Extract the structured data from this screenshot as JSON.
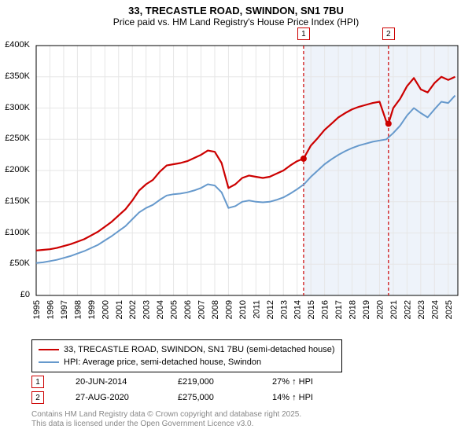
{
  "title": {
    "line1": "33, TRECASTLE ROAD, SWINDON, SN1 7BU",
    "line2": "Price paid vs. HM Land Registry's House Price Index (HPI)"
  },
  "chart": {
    "type": "line",
    "background_color": "#ffffff",
    "plot_border_color": "#000000",
    "grid_color": "#e6e6e6",
    "shaded_band": {
      "x_from": 2014.47,
      "x_to": 2025.7,
      "fill": "#eef3fa"
    },
    "x": {
      "min": 1995,
      "max": 2025.7,
      "ticks": [
        1995,
        1996,
        1997,
        1998,
        1999,
        2000,
        2001,
        2002,
        2003,
        2004,
        2005,
        2006,
        2007,
        2008,
        2009,
        2010,
        2011,
        2012,
        2013,
        2014,
        2015,
        2016,
        2017,
        2018,
        2019,
        2020,
        2021,
        2022,
        2023,
        2024,
        2025
      ],
      "tick_fontsize": 11,
      "tick_rotation": -90
    },
    "y": {
      "min": 0,
      "max": 400000,
      "ticks": [
        0,
        50000,
        100000,
        150000,
        200000,
        250000,
        300000,
        350000,
        400000
      ],
      "tick_labels": [
        "£0",
        "£50K",
        "£100K",
        "£150K",
        "£200K",
        "£250K",
        "£300K",
        "£350K",
        "£400K"
      ],
      "tick_fontsize": 11
    },
    "series": [
      {
        "name": "33, TRECASTLE ROAD, SWINDON, SN1 7BU (semi-detached house)",
        "color": "#cc0000",
        "line_width": 2.2,
        "x": [
          1995,
          1995.5,
          1996,
          1996.5,
          1997,
          1997.5,
          1998,
          1998.5,
          1999,
          1999.5,
          2000,
          2000.5,
          2001,
          2001.5,
          2002,
          2002.5,
          2003,
          2003.5,
          2004,
          2004.5,
          2005,
          2005.5,
          2006,
          2006.5,
          2007,
          2007.5,
          2008,
          2008.5,
          2009,
          2009.5,
          2010,
          2010.5,
          2011,
          2011.5,
          2012,
          2012.5,
          2013,
          2013.5,
          2014,
          2014.47,
          2015,
          2015.5,
          2016,
          2016.5,
          2017,
          2017.5,
          2018,
          2018.5,
          2019,
          2019.5,
          2020,
          2020.5,
          2020.65,
          2021,
          2021.5,
          2022,
          2022.5,
          2023,
          2023.5,
          2024,
          2024.5,
          2025,
          2025.5
        ],
        "y": [
          72000,
          73000,
          74000,
          76000,
          79000,
          82000,
          86000,
          90000,
          96000,
          102000,
          110000,
          118000,
          128000,
          138000,
          152000,
          168000,
          178000,
          185000,
          198000,
          208000,
          210000,
          212000,
          215000,
          220000,
          225000,
          232000,
          230000,
          212000,
          172000,
          178000,
          188000,
          192000,
          190000,
          188000,
          190000,
          195000,
          200000,
          208000,
          215000,
          219000,
          240000,
          252000,
          265000,
          275000,
          285000,
          292000,
          298000,
          302000,
          305000,
          308000,
          310000,
          278000,
          275000,
          300000,
          315000,
          335000,
          348000,
          330000,
          325000,
          340000,
          350000,
          345000,
          350000
        ]
      },
      {
        "name": "HPI: Average price, semi-detached house, Swindon",
        "color": "#6699cc",
        "line_width": 2.0,
        "x": [
          1995,
          1995.5,
          1996,
          1996.5,
          1997,
          1997.5,
          1998,
          1998.5,
          1999,
          1999.5,
          2000,
          2000.5,
          2001,
          2001.5,
          2002,
          2002.5,
          2003,
          2003.5,
          2004,
          2004.5,
          2005,
          2005.5,
          2006,
          2006.5,
          2007,
          2007.5,
          2008,
          2008.5,
          2009,
          2009.5,
          2010,
          2010.5,
          2011,
          2011.5,
          2012,
          2012.5,
          2013,
          2013.5,
          2014,
          2014.5,
          2015,
          2015.5,
          2016,
          2016.5,
          2017,
          2017.5,
          2018,
          2018.5,
          2019,
          2019.5,
          2020,
          2020.5,
          2021,
          2021.5,
          2022,
          2022.5,
          2023,
          2023.5,
          2024,
          2024.5,
          2025,
          2025.5
        ],
        "y": [
          52000,
          53000,
          55000,
          57000,
          60000,
          63000,
          67000,
          71000,
          76000,
          81000,
          88000,
          95000,
          103000,
          111000,
          122000,
          133000,
          140000,
          145000,
          153000,
          160000,
          162000,
          163000,
          165000,
          168000,
          172000,
          178000,
          176000,
          165000,
          140000,
          143000,
          150000,
          152000,
          150000,
          149000,
          150000,
          153000,
          157000,
          163000,
          170000,
          178000,
          190000,
          200000,
          210000,
          218000,
          225000,
          231000,
          236000,
          240000,
          243000,
          246000,
          248000,
          250000,
          260000,
          272000,
          288000,
          300000,
          292000,
          285000,
          298000,
          310000,
          308000,
          320000
        ]
      }
    ],
    "markers": [
      {
        "id": "1",
        "x": 2014.47,
        "y": 219000,
        "line_color": "#cc0000",
        "dash": "4,3",
        "badge_border": "#cc0000",
        "label_y_top": 35
      },
      {
        "id": "2",
        "x": 2020.65,
        "y": 275000,
        "line_color": "#cc0000",
        "dash": "4,3",
        "badge_border": "#cc0000",
        "label_y_top": 35
      }
    ]
  },
  "legend": {
    "items": [
      {
        "color": "#cc0000",
        "label": "33, TRECASTLE ROAD, SWINDON, SN1 7BU (semi-detached house)"
      },
      {
        "color": "#6699cc",
        "label": "HPI: Average price, semi-detached house, Swindon"
      }
    ]
  },
  "marker_table": {
    "rows": [
      {
        "id": "1",
        "border": "#cc0000",
        "date": "20-JUN-2014",
        "price": "£219,000",
        "delta": "27% ↑ HPI"
      },
      {
        "id": "2",
        "border": "#cc0000",
        "date": "27-AUG-2020",
        "price": "£275,000",
        "delta": "14% ↑ HPI"
      }
    ]
  },
  "footer": {
    "line1": "Contains HM Land Registry data © Crown copyright and database right 2025.",
    "line2": "This data is licensed under the Open Government Licence v3.0."
  }
}
